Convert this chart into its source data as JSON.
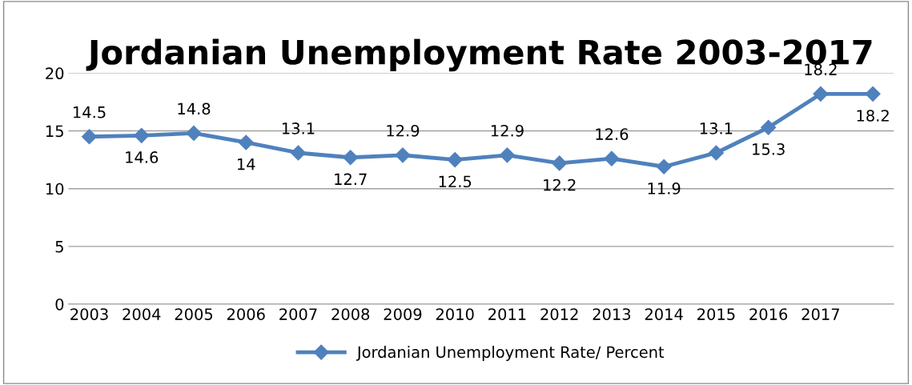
{
  "chart_data": {
    "type": "line",
    "title": "Jordanian Unemployment Rate 2003-2017",
    "categories": [
      "2003",
      "2004",
      "2005",
      "2006",
      "2007",
      "2008",
      "2009",
      "2010",
      "2011",
      "2012",
      "2013",
      "2014",
      "2015",
      "2016",
      "2017",
      null
    ],
    "series": [
      {
        "name": "Jordanian Unemployment Rate/ Percent",
        "color": "#4f81bd",
        "values": [
          14.5,
          14.6,
          14.8,
          14,
          13.1,
          12.7,
          12.9,
          12.5,
          12.9,
          12.2,
          12.6,
          11.9,
          13.1,
          15.3,
          18.2,
          18.2
        ]
      }
    ],
    "ylim": [
      0,
      20
    ],
    "yticks": [
      0,
      5,
      10,
      15,
      20
    ],
    "grid": "y",
    "legend": "bottom",
    "marker": "diamond",
    "line_style": "solid",
    "data_labels": true
  }
}
